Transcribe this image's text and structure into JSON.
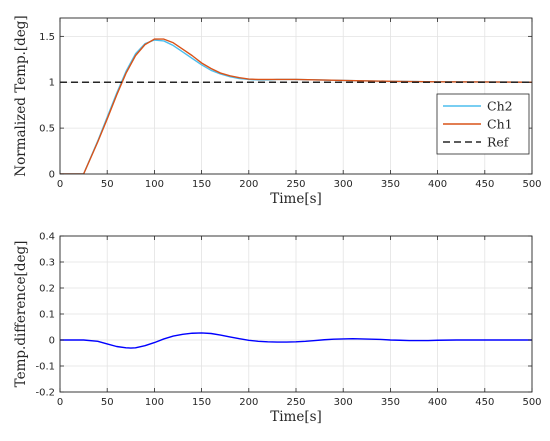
{
  "chart_data": [
    {
      "type": "line",
      "xlabel": "Time[s]",
      "ylabel": "Normalized Temp.[deg]",
      "xlim": [
        0,
        500
      ],
      "ylim": [
        0,
        1.7
      ],
      "xticks": [
        0,
        50,
        100,
        150,
        200,
        250,
        300,
        350,
        400,
        450,
        500
      ],
      "yticks": [
        0,
        0.5,
        1,
        1.5
      ],
      "ytick_labels": [
        "0",
        "0.5",
        "1",
        "1.5"
      ],
      "grid": true,
      "legend": {
        "placement": "right"
      },
      "series": [
        {
          "name": "Ch2",
          "color": "#4dbeee",
          "x": [
            0,
            25,
            40,
            50,
            60,
            70,
            80,
            90,
            100,
            110,
            120,
            130,
            140,
            150,
            160,
            170,
            180,
            190,
            200,
            210,
            220,
            230,
            250,
            300,
            350,
            400,
            450,
            500
          ],
          "y": [
            0,
            0,
            0.36,
            0.62,
            0.88,
            1.12,
            1.31,
            1.42,
            1.46,
            1.45,
            1.4,
            1.33,
            1.26,
            1.19,
            1.13,
            1.09,
            1.06,
            1.04,
            1.03,
            1.025,
            1.025,
            1.03,
            1.03,
            1.02,
            1.01,
            1.005,
            1.003,
            1.0
          ]
        },
        {
          "name": "Ch1",
          "color": "#d95319",
          "x": [
            0,
            25,
            40,
            50,
            60,
            70,
            80,
            90,
            100,
            110,
            120,
            130,
            140,
            150,
            160,
            170,
            180,
            190,
            200,
            210,
            220,
            230,
            250,
            300,
            350,
            400,
            450,
            500
          ],
          "y": [
            0,
            0,
            0.35,
            0.6,
            0.86,
            1.1,
            1.29,
            1.41,
            1.47,
            1.47,
            1.43,
            1.36,
            1.29,
            1.21,
            1.15,
            1.1,
            1.07,
            1.05,
            1.035,
            1.03,
            1.03,
            1.03,
            1.03,
            1.02,
            1.01,
            1.005,
            1.003,
            1.0
          ]
        },
        {
          "name": "Ref",
          "color": "#262626",
          "dashed": true,
          "x": [
            0,
            500
          ],
          "y": [
            1,
            1
          ]
        }
      ]
    },
    {
      "type": "line",
      "xlabel": "Time[s]",
      "ylabel": "Temp.difference[deg]",
      "xlim": [
        0,
        500
      ],
      "ylim": [
        -0.2,
        0.4
      ],
      "xticks": [
        0,
        50,
        100,
        150,
        200,
        250,
        300,
        350,
        400,
        450,
        500
      ],
      "yticks": [
        -0.2,
        -0.1,
        0,
        0.1,
        0.2,
        0.3,
        0.4
      ],
      "ytick_labels": [
        "-0.2",
        "-0.1",
        "0",
        "0.1",
        "0.2",
        "0.3",
        "0.4"
      ],
      "grid": true,
      "series": [
        {
          "color": "#0000ff",
          "x": [
            0,
            25,
            40,
            50,
            60,
            70,
            75,
            80,
            90,
            100,
            110,
            120,
            130,
            140,
            150,
            160,
            170,
            180,
            190,
            200,
            210,
            220,
            230,
            240,
            250,
            260,
            270,
            280,
            290,
            300,
            310,
            320,
            330,
            340,
            350,
            360,
            370,
            380,
            390,
            400,
            420,
            440,
            460,
            480,
            500
          ],
          "y": [
            0,
            0,
            -0.005,
            -0.015,
            -0.025,
            -0.03,
            -0.031,
            -0.03,
            -0.022,
            -0.01,
            0.004,
            0.015,
            0.022,
            0.026,
            0.027,
            0.025,
            0.019,
            0.012,
            0.005,
            -0.001,
            -0.005,
            -0.007,
            -0.008,
            -0.008,
            -0.007,
            -0.005,
            -0.002,
            0.001,
            0.003,
            0.004,
            0.005,
            0.004,
            0.003,
            0.002,
            0.0,
            -0.001,
            -0.002,
            -0.002,
            -0.002,
            -0.001,
            0.0,
            0.0,
            0.0,
            0.0,
            0.0
          ]
        }
      ]
    }
  ]
}
